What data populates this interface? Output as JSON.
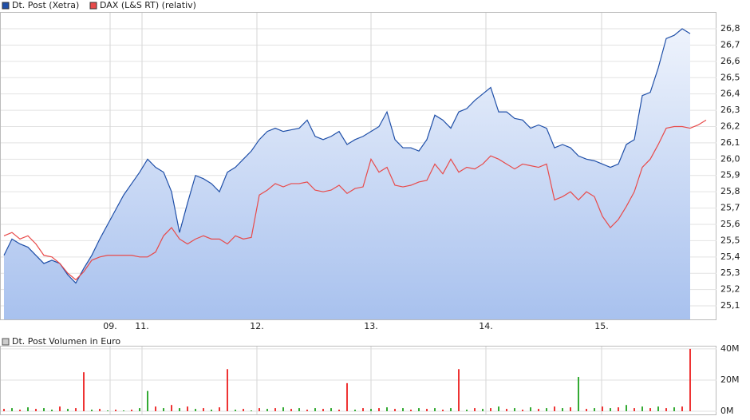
{
  "chart_data": [
    {
      "type": "line",
      "xlim": [
        0,
        89.3
      ],
      "xticks": [
        {
          "value": 13.3,
          "label": "09."
        },
        {
          "value": 17.3,
          "label": "11."
        },
        {
          "value": 31.7,
          "label": "12."
        },
        {
          "value": 46,
          "label": "13."
        },
        {
          "value": 60.4,
          "label": "14."
        },
        {
          "value": 74.9,
          "label": "15."
        }
      ],
      "ylim": [
        25.017,
        26.903
      ],
      "yticks": [
        {
          "value": 25.1,
          "label": "25,1"
        },
        {
          "value": 25.2,
          "label": "25,2"
        },
        {
          "value": 25.3,
          "label": "25,3"
        },
        {
          "value": 25.4,
          "label": "25,4"
        },
        {
          "value": 25.5,
          "label": "25,5"
        },
        {
          "value": 25.6,
          "label": "25,6"
        },
        {
          "value": 25.7,
          "label": "25,7"
        },
        {
          "value": 25.8,
          "label": "25,8"
        },
        {
          "value": 25.9,
          "label": "25,9"
        },
        {
          "value": 26.0,
          "label": "26,0"
        },
        {
          "value": 26.1,
          "label": "26,1"
        },
        {
          "value": 26.2,
          "label": "26,2"
        },
        {
          "value": 26.3,
          "label": "26,3"
        },
        {
          "value": 26.4,
          "label": "26,4"
        },
        {
          "value": 26.5,
          "label": "26,5"
        },
        {
          "value": 26.6,
          "label": "26,6"
        },
        {
          "value": 26.7,
          "label": "26,7"
        },
        {
          "value": 26.8,
          "label": "26,8"
        }
      ],
      "grid": true,
      "series": [
        {
          "name": "Dt. Post (Xetra)",
          "color": "#1f4fa8",
          "area": true,
          "values": [
            25.41,
            25.51,
            25.48,
            25.46,
            25.41,
            25.36,
            25.38,
            25.36,
            25.29,
            25.24,
            25.33,
            25.41,
            25.51,
            25.6,
            25.69,
            25.78,
            25.85,
            25.92,
            26.0,
            25.95,
            25.92,
            25.8,
            25.55,
            25.73,
            25.9,
            25.88,
            25.85,
            25.8,
            25.92,
            25.95,
            26.0,
            26.05,
            26.12,
            26.17,
            26.19,
            26.17,
            26.18,
            26.19,
            26.24,
            26.14,
            26.12,
            26.14,
            26.17,
            26.09,
            26.12,
            26.14,
            26.17,
            26.2,
            26.29,
            26.12,
            26.07,
            26.07,
            26.05,
            26.12,
            26.27,
            26.24,
            26.19,
            26.29,
            26.31,
            26.36,
            26.4,
            26.44,
            26.29,
            26.29,
            26.25,
            26.24,
            26.19,
            26.21,
            26.19,
            26.07,
            26.09,
            26.07,
            26.02,
            26.0,
            25.99,
            25.97,
            25.95,
            25.97,
            26.09,
            26.12,
            26.39,
            26.41,
            26.56,
            26.74,
            26.76,
            26.8,
            26.77,
            null,
            null
          ]
        },
        {
          "name": "DAX (L&S RT) (relativ)",
          "color": "#e84a4a",
          "area": false,
          "values": [
            25.53,
            25.55,
            25.51,
            25.53,
            25.48,
            25.41,
            25.4,
            25.36,
            25.3,
            25.26,
            25.31,
            25.38,
            25.4,
            25.41,
            25.41,
            25.41,
            25.41,
            25.4,
            25.4,
            25.43,
            25.53,
            25.58,
            25.51,
            25.48,
            25.51,
            25.53,
            25.51,
            25.51,
            25.48,
            25.53,
            25.51,
            25.52,
            25.78,
            25.81,
            25.85,
            25.83,
            25.85,
            25.85,
            25.86,
            25.81,
            25.8,
            25.81,
            25.84,
            25.79,
            25.82,
            25.83,
            26.0,
            25.92,
            25.95,
            25.84,
            25.83,
            25.84,
            25.86,
            25.87,
            25.97,
            25.91,
            26.0,
            25.92,
            25.95,
            25.94,
            25.97,
            26.02,
            26.0,
            25.97,
            25.94,
            25.97,
            25.96,
            25.95,
            25.97,
            25.75,
            25.77,
            25.8,
            25.75,
            25.8,
            25.77,
            25.65,
            25.58,
            25.63,
            25.71,
            25.8,
            25.95,
            26.0,
            26.09,
            26.19,
            26.2,
            26.2,
            26.19,
            26.21,
            26.24
          ]
        }
      ]
    },
    {
      "type": "bar",
      "title": "Dt. Post Volumen in Euro",
      "xlim": [
        0,
        89.3
      ],
      "ylim": [
        0,
        42
      ],
      "yticks": [
        {
          "value": 0,
          "label": "0M"
        },
        {
          "value": 20,
          "label": "20M"
        },
        {
          "value": 40,
          "label": "40M"
        }
      ],
      "grid": true,
      "values": [
        1.5,
        2,
        1,
        2.5,
        1.5,
        2,
        1,
        3,
        1.5,
        2,
        25,
        1,
        1.5,
        0.5,
        1,
        0.5,
        1,
        2,
        13,
        3,
        2,
        4,
        2,
        3,
        1.5,
        2,
        1,
        2.5,
        27,
        1,
        1.5,
        0.5,
        2,
        1.5,
        2,
        2.5,
        1.5,
        2,
        1,
        2,
        1.5,
        2,
        1,
        18,
        1,
        2,
        1.5,
        2,
        2.5,
        1.5,
        2,
        1,
        2,
        1.5,
        2,
        1,
        2,
        27,
        1,
        2,
        1.5,
        2,
        3,
        1.5,
        2,
        1,
        2.5,
        1.5,
        2,
        3,
        2,
        2.5,
        22,
        1.5,
        2,
        3,
        2,
        2.5,
        4,
        2,
        3,
        2,
        3,
        2,
        2.5,
        3,
        40
      ],
      "colors": [
        "#e33",
        "#3a3",
        "#e33",
        "#3a3",
        "#e33",
        "#3a3",
        "#3a3",
        "#e33",
        "#3a3",
        "#e33",
        "#e33",
        "#3a3",
        "#e33",
        "#3a3",
        "#e33",
        "#3a3",
        "#e33",
        "#3a3",
        "#3a3",
        "#e33",
        "#3a3",
        "#e33",
        "#3a3",
        "#e33",
        "#3a3",
        "#e33",
        "#3a3",
        "#e33",
        "#e33",
        "#3a3",
        "#e33",
        "#3a3",
        "#e33",
        "#3a3",
        "#e33",
        "#3a3",
        "#e33",
        "#3a3",
        "#e33",
        "#3a3",
        "#e33",
        "#3a3",
        "#e33",
        "#e33",
        "#3a3",
        "#e33",
        "#3a3",
        "#e33",
        "#3a3",
        "#e33",
        "#3a3",
        "#e33",
        "#3a3",
        "#e33",
        "#3a3",
        "#e33",
        "#3a3",
        "#e33",
        "#3a3",
        "#e33",
        "#3a3",
        "#e33",
        "#3a3",
        "#e33",
        "#3a3",
        "#e33",
        "#3a3",
        "#e33",
        "#3a3",
        "#e33",
        "#3a3",
        "#e33",
        "#3a3",
        "#e33",
        "#3a3",
        "#e33",
        "#3a3",
        "#e33",
        "#3a3",
        "#e33",
        "#3a3",
        "#e33",
        "#3a3",
        "#e33",
        "#3a3",
        "#e33",
        "#e33"
      ]
    }
  ]
}
